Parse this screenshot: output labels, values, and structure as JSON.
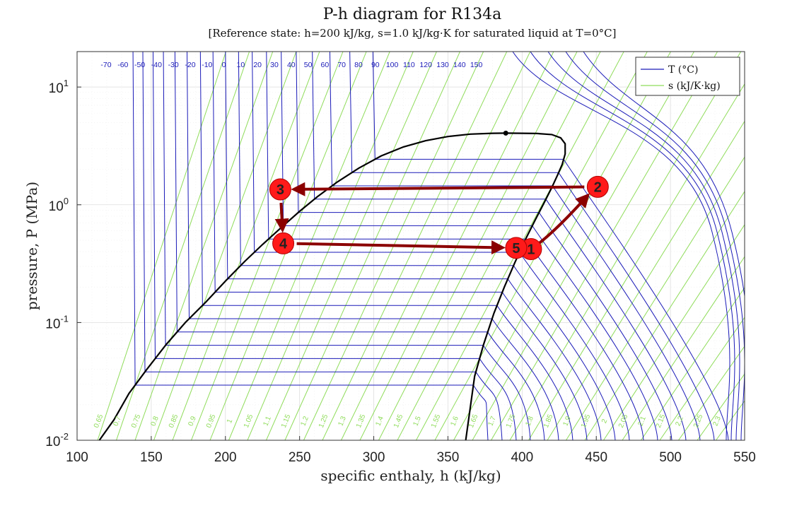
{
  "chart_data": {
    "type": "line",
    "title": "P-h diagram for R134a",
    "subtitle": "[Reference state: h=200 kJ/kg, s=1.0 kJ/kg·K for saturated liquid at T=0°C]",
    "xlabel": "specific enthaly, h (kJ/kg)",
    "ylabel": "pressure, P (MPa)",
    "xlim": [
      100,
      550
    ],
    "ylim": [
      0.01,
      20
    ],
    "yscale": "log",
    "grid": true,
    "x_ticks": [
      "100",
      "150",
      "200",
      "250",
      "300",
      "350",
      "400",
      "450",
      "500",
      "550"
    ],
    "y_ticks": [
      {
        "base": "10",
        "exp": "-2",
        "value": 0.01
      },
      {
        "base": "10",
        "exp": "-1",
        "value": 0.1
      },
      {
        "base": "10",
        "exp": "0",
        "value": 1
      },
      {
        "base": "10",
        "exp": "1",
        "value": 10
      }
    ],
    "legend": {
      "position": "top-right",
      "entries": [
        {
          "label": "T (°C)",
          "color": "#1a1ab8"
        },
        {
          "label": "s (kJ/K·kg)",
          "color": "#8fdc5a"
        }
      ]
    },
    "isotherm_labels": [
      "-70",
      "-60",
      "-50",
      "-40",
      "-30",
      "-20",
      "-10",
      "0",
      "10",
      "20",
      "30",
      "40",
      "50",
      "60",
      "70",
      "80",
      "90",
      "100",
      "110",
      "120",
      "130",
      "140",
      "150"
    ],
    "isentrope_labels": [
      "0.65",
      "0.7",
      "0.75",
      "0.8",
      "0.85",
      "0.9",
      "0.95",
      "1",
      "1.05",
      "1.1",
      "1.15",
      "1.2",
      "1.25",
      "1.3",
      "1.35",
      "1.4",
      "1.45",
      "1.5",
      "1.55",
      "1.6",
      "1.65",
      "1.7",
      "1.75",
      "1.8",
      "1.85",
      "1.9",
      "1.95",
      "2",
      "2.05",
      "2.1",
      "2.15",
      "2.2",
      "2.25",
      "2.3"
    ],
    "saturation_dome": {
      "critical_point": {
        "h": 389,
        "P": 4.06
      },
      "liquid": [
        [
          115,
          0.01
        ],
        [
          125,
          0.015
        ],
        [
          135,
          0.025
        ],
        [
          147,
          0.04
        ],
        [
          160,
          0.065
        ],
        [
          173,
          0.1
        ],
        [
          187,
          0.15
        ],
        [
          200,
          0.225
        ],
        [
          213,
          0.33
        ],
        [
          225,
          0.46
        ],
        [
          237,
          0.63
        ],
        [
          250,
          0.88
        ],
        [
          262,
          1.17
        ],
        [
          275,
          1.55
        ],
        [
          290,
          2.05
        ],
        [
          305,
          2.6
        ],
        [
          320,
          3.1
        ],
        [
          335,
          3.5
        ],
        [
          350,
          3.8
        ],
        [
          365,
          3.98
        ],
        [
          380,
          4.05
        ],
        [
          389,
          4.06
        ]
      ],
      "vapor": [
        [
          389,
          4.06
        ],
        [
          400,
          4.05
        ],
        [
          410,
          4.03
        ],
        [
          420,
          3.95
        ],
        [
          426,
          3.7
        ],
        [
          429,
          3.3
        ],
        [
          429,
          2.7
        ],
        [
          427,
          2.2
        ],
        [
          424,
          1.8
        ],
        [
          420,
          1.4
        ],
        [
          415,
          1.05
        ],
        [
          409,
          0.75
        ],
        [
          402,
          0.5
        ],
        [
          395,
          0.32
        ],
        [
          388,
          0.2
        ],
        [
          381,
          0.12
        ],
        [
          374,
          0.065
        ],
        [
          368,
          0.035
        ],
        [
          362,
          0.01
        ]
      ]
    },
    "cycle_points": [
      {
        "label": "1",
        "h": 406,
        "P": 0.42
      },
      {
        "label": "2",
        "h": 451,
        "P": 1.42
      },
      {
        "label": "3",
        "h": 237,
        "P": 1.35
      },
      {
        "label": "4",
        "h": 239,
        "P": 0.47
      },
      {
        "label": "5",
        "h": 396,
        "P": 0.43
      }
    ],
    "cycle_paths": [
      {
        "from": "1",
        "to": "2"
      },
      {
        "from": "2",
        "to": "3"
      },
      {
        "from": "3",
        "to": "4"
      },
      {
        "from": "4",
        "to": "5"
      }
    ],
    "colors": {
      "isotherm": "#1a1ab8",
      "isentrope": "#8fdc5a",
      "dome": "#000000",
      "cycle": "#8b0000",
      "point_fill": "#ff1a1a"
    }
  }
}
